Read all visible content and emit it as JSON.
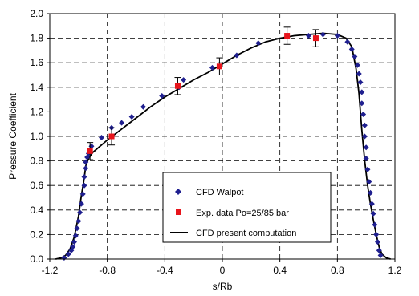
{
  "chart_data": {
    "type": "scatter",
    "xlabel": "s/Rb",
    "ylabel": "Pressure Coefficient",
    "xlim": [
      -1.2,
      1.2
    ],
    "ylim": [
      0.0,
      2.0
    ],
    "x_ticks": [
      "-1.2",
      "-0.8",
      "-0.4",
      "0",
      "0.4",
      "0.8",
      "1.2"
    ],
    "y_ticks": [
      "0.0",
      "0.2",
      "0.4",
      "0.6",
      "0.8",
      "1.0",
      "1.2",
      "1.4",
      "1.6",
      "1.8",
      "2.0"
    ],
    "grid": true,
    "legend_position": "lower-center",
    "series": [
      {
        "name": "CFD Walpot",
        "kind": "markers",
        "marker": "diamond",
        "color": "#1f1f8f",
        "points": [
          [
            -1.1,
            0.01
          ],
          [
            -1.07,
            0.04
          ],
          [
            -1.05,
            0.07
          ],
          [
            -1.04,
            0.1
          ],
          [
            -1.03,
            0.14
          ],
          [
            -1.02,
            0.19
          ],
          [
            -1.01,
            0.25
          ],
          [
            -1.0,
            0.31
          ],
          [
            -0.99,
            0.38
          ],
          [
            -0.98,
            0.45
          ],
          [
            -0.97,
            0.53
          ],
          [
            -0.96,
            0.6
          ],
          [
            -0.96,
            0.67
          ],
          [
            -0.95,
            0.74
          ],
          [
            -0.95,
            0.79
          ],
          [
            -0.94,
            0.83
          ],
          [
            -0.93,
            0.86
          ],
          [
            -0.91,
            0.92
          ],
          [
            -0.84,
            0.99
          ],
          [
            -0.77,
            1.07
          ],
          [
            -0.7,
            1.11
          ],
          [
            -0.63,
            1.16
          ],
          [
            -0.55,
            1.24
          ],
          [
            -0.42,
            1.33
          ],
          [
            -0.3,
            1.4
          ],
          [
            -0.27,
            1.46
          ],
          [
            -0.07,
            1.56
          ],
          [
            0.1,
            1.66
          ],
          [
            0.25,
            1.76
          ],
          [
            0.45,
            1.81
          ],
          [
            0.6,
            1.82
          ],
          [
            0.7,
            1.83
          ],
          [
            0.8,
            1.82
          ],
          [
            0.87,
            1.77
          ],
          [
            0.9,
            1.71
          ],
          [
            0.92,
            1.65
          ],
          [
            0.94,
            1.58
          ],
          [
            0.95,
            1.51
          ],
          [
            0.96,
            1.44
          ],
          [
            0.97,
            1.36
          ],
          [
            0.97,
            1.27
          ],
          [
            0.98,
            1.18
          ],
          [
            0.99,
            1.09
          ],
          [
            0.99,
            1.0
          ],
          [
            1.0,
            0.91
          ],
          [
            1.0,
            0.82
          ],
          [
            1.01,
            0.73
          ],
          [
            1.02,
            0.63
          ],
          [
            1.03,
            0.54
          ],
          [
            1.04,
            0.45
          ],
          [
            1.05,
            0.37
          ],
          [
            1.06,
            0.28
          ],
          [
            1.07,
            0.2
          ],
          [
            1.08,
            0.14
          ],
          [
            1.09,
            0.07
          ],
          [
            1.1,
            0.03
          ]
        ]
      },
      {
        "name": "Exp. data Po=25/85 bar",
        "kind": "markers",
        "marker": "square",
        "color": "#e8141b",
        "error": 0.07,
        "points": [
          [
            -0.92,
            0.88
          ],
          [
            -0.77,
            1.0
          ],
          [
            -0.31,
            1.41
          ],
          [
            -0.02,
            1.57
          ],
          [
            0.45,
            1.82
          ],
          [
            0.65,
            1.8
          ]
        ]
      },
      {
        "name": "CFD present computation",
        "kind": "line",
        "color": "#000000",
        "points": [
          [
            -1.16,
            0.0
          ],
          [
            -1.12,
            0.01
          ],
          [
            -1.09,
            0.03
          ],
          [
            -1.06,
            0.08
          ],
          [
            -1.03,
            0.18
          ],
          [
            -1.0,
            0.35
          ],
          [
            -0.98,
            0.52
          ],
          [
            -0.96,
            0.66
          ],
          [
            -0.95,
            0.76
          ],
          [
            -0.93,
            0.82
          ],
          [
            -0.9,
            0.87
          ],
          [
            -0.85,
            0.92
          ],
          [
            -0.8,
            0.97
          ],
          [
            -0.7,
            1.06
          ],
          [
            -0.6,
            1.15
          ],
          [
            -0.5,
            1.24
          ],
          [
            -0.4,
            1.32
          ],
          [
            -0.3,
            1.39
          ],
          [
            -0.2,
            1.46
          ],
          [
            -0.1,
            1.52
          ],
          [
            0.0,
            1.59
          ],
          [
            0.1,
            1.66
          ],
          [
            0.2,
            1.72
          ],
          [
            0.3,
            1.77
          ],
          [
            0.4,
            1.8
          ],
          [
            0.5,
            1.82
          ],
          [
            0.6,
            1.83
          ],
          [
            0.7,
            1.84
          ],
          [
            0.8,
            1.83
          ],
          [
            0.86,
            1.8
          ],
          [
            0.9,
            1.73
          ],
          [
            0.93,
            1.55
          ],
          [
            0.95,
            1.35
          ],
          [
            0.97,
            1.05
          ],
          [
            0.99,
            0.8
          ],
          [
            1.01,
            0.6
          ],
          [
            1.03,
            0.45
          ],
          [
            1.05,
            0.32
          ],
          [
            1.07,
            0.2
          ],
          [
            1.09,
            0.1
          ],
          [
            1.11,
            0.04
          ],
          [
            1.14,
            0.01
          ],
          [
            1.17,
            0.0
          ]
        ]
      }
    ]
  }
}
